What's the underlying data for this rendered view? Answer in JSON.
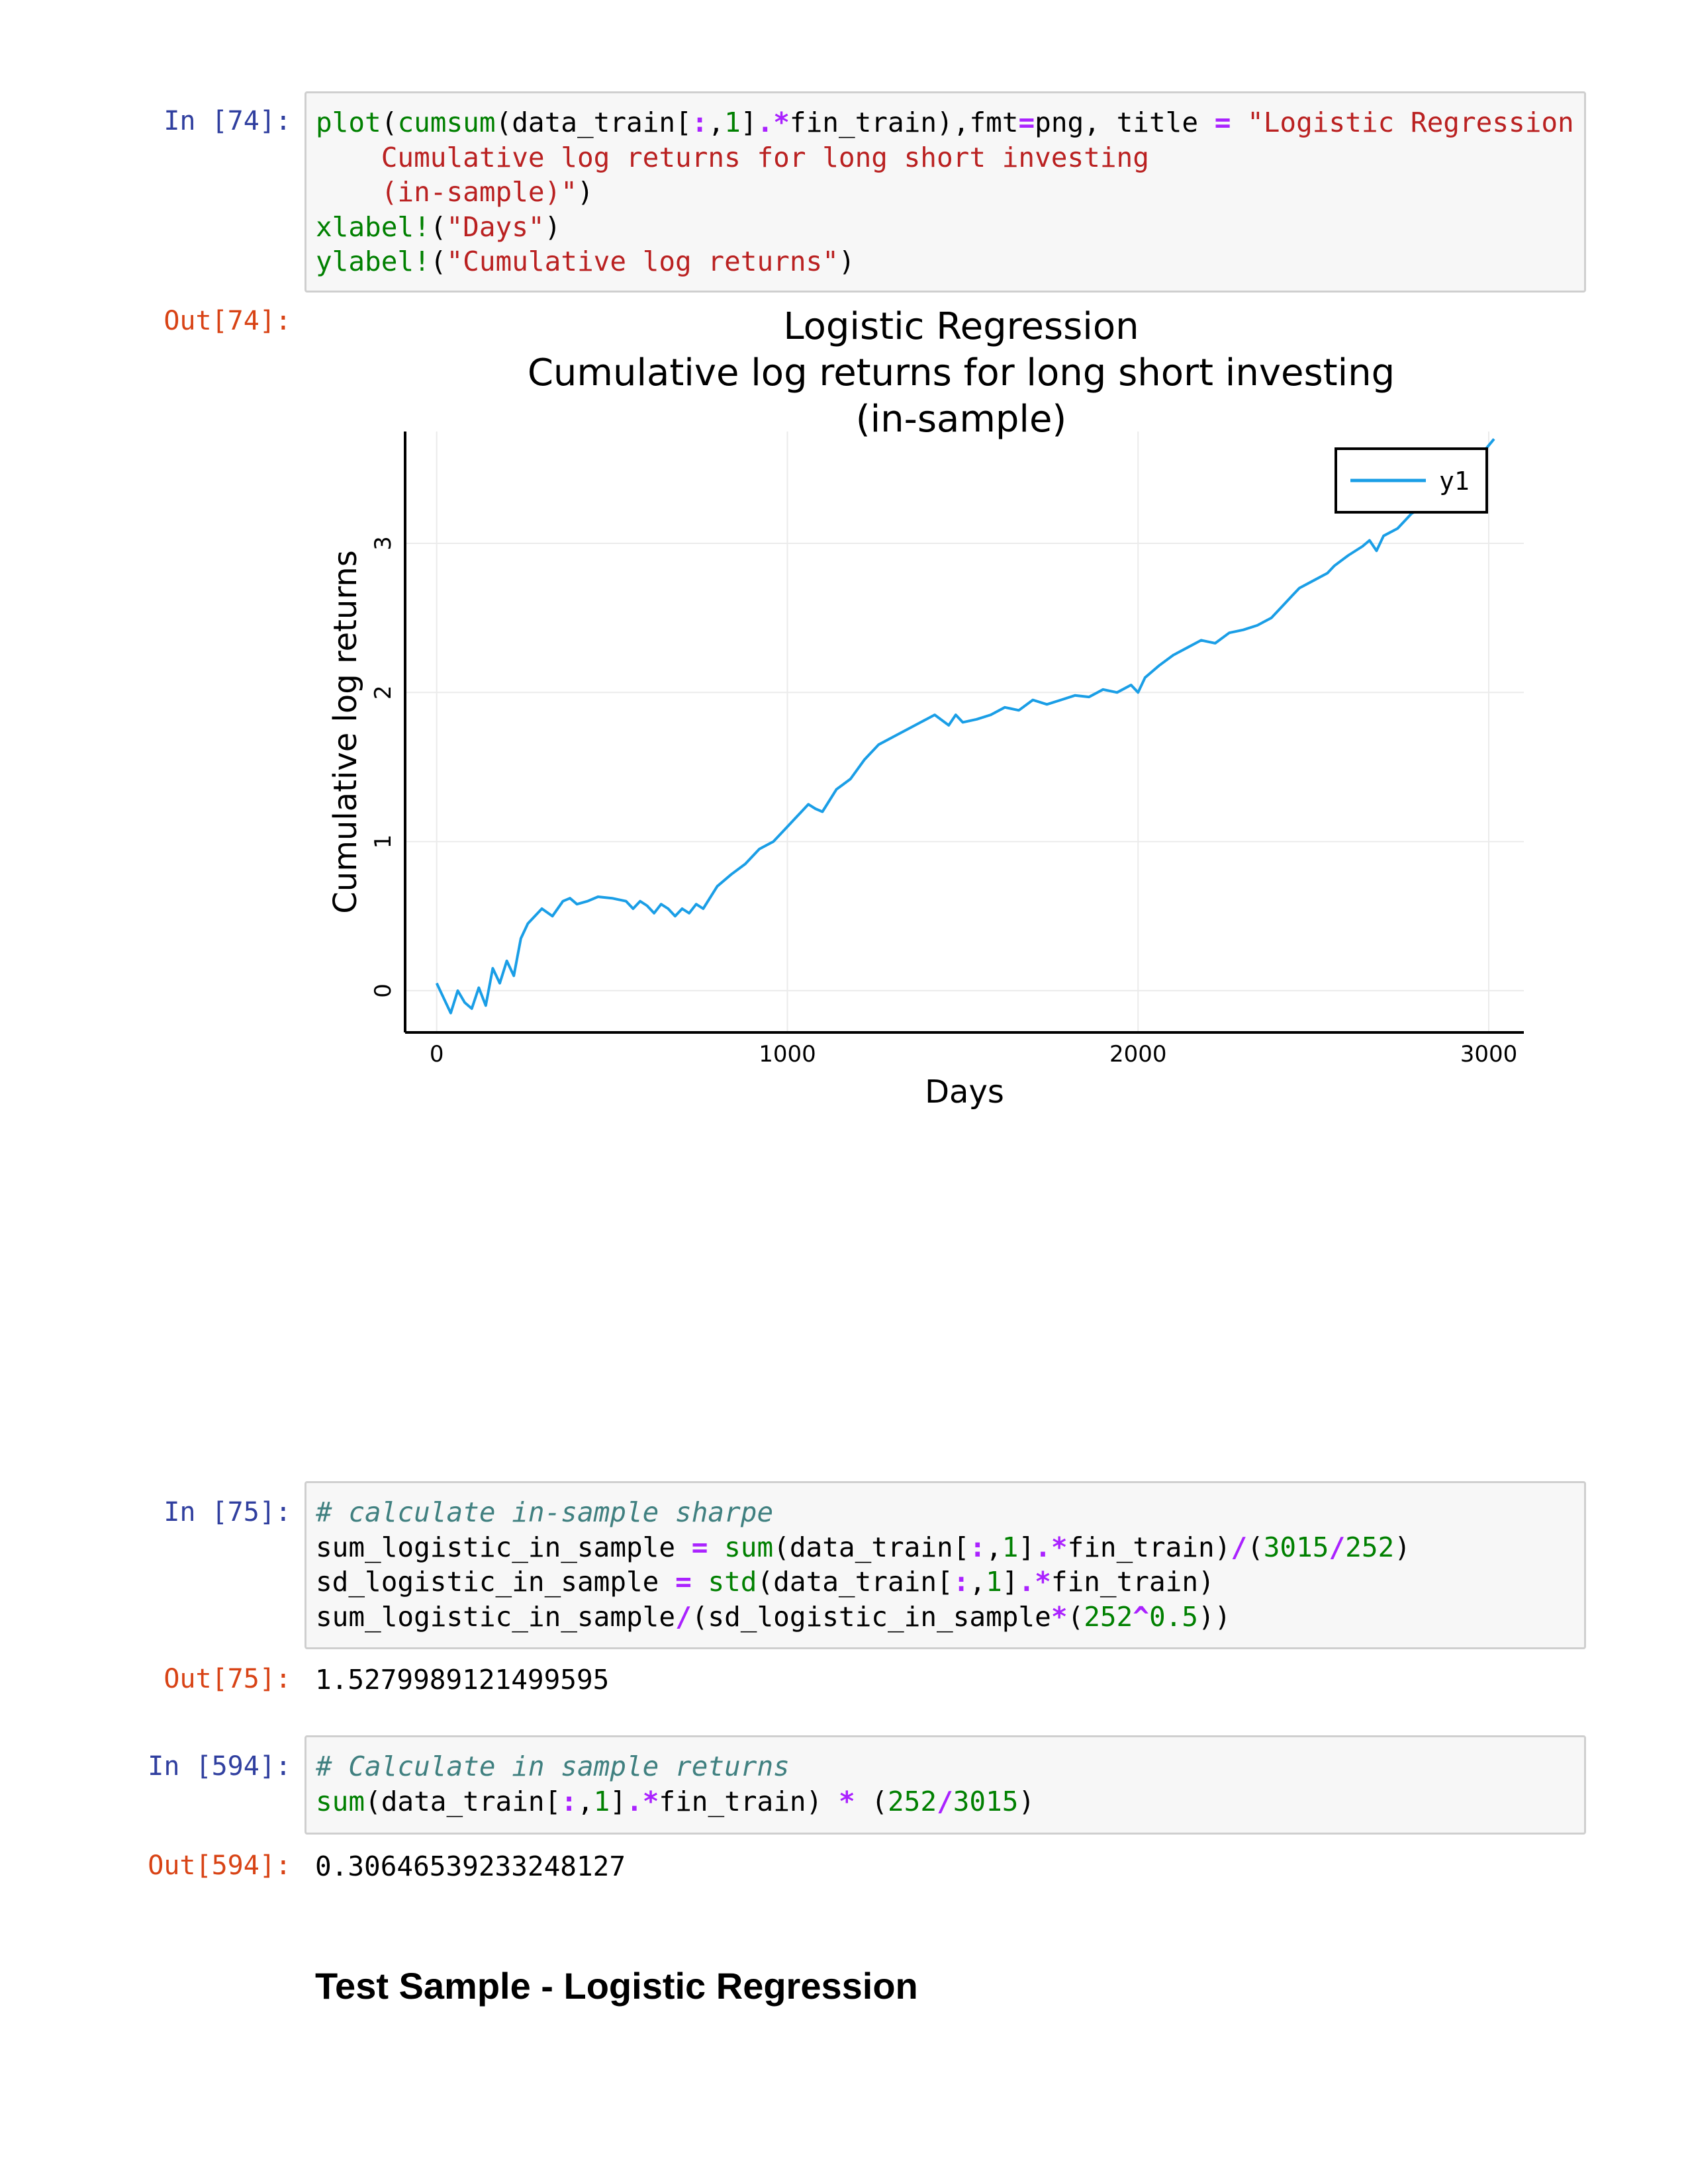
{
  "cells": {
    "c74": {
      "in_prompt": "In [74]:",
      "out_prompt": "Out[74]:"
    },
    "c75": {
      "in_prompt": "In [75]:",
      "out_prompt": "Out[75]:",
      "output": "1.5279989121499595"
    },
    "c594": {
      "in_prompt": "In [594]:",
      "out_prompt": "Out[594]:",
      "output": "0.30646539233248127"
    }
  },
  "code": {
    "c74": [
      [
        [
          "fn",
          "plot"
        ],
        [
          "t",
          "("
        ],
        [
          "fn",
          "cumsum"
        ],
        [
          "t",
          "(data_train["
        ],
        [
          "op",
          ":"
        ],
        [
          "t",
          ","
        ],
        [
          "num",
          "1"
        ],
        [
          "t",
          "]"
        ],
        [
          "op",
          ".*"
        ],
        [
          "t",
          "fin_train),fmt"
        ],
        [
          "op",
          "="
        ],
        [
          "t",
          "png, title "
        ],
        [
          "op",
          "="
        ],
        [
          "t",
          " "
        ],
        [
          "str",
          "\"Logistic Regression"
        ]
      ],
      [
        [
          "str",
          "    Cumulative log returns for long short investing"
        ]
      ],
      [
        [
          "str",
          "    (in-sample)\""
        ],
        [
          "t",
          ")"
        ]
      ],
      [
        [
          "fn",
          "xlabel!"
        ],
        [
          "t",
          "("
        ],
        [
          "str",
          "\"Days\""
        ],
        [
          "t",
          ")"
        ]
      ],
      [
        [
          "fn",
          "ylabel!"
        ],
        [
          "t",
          "("
        ],
        [
          "str",
          "\"Cumulative log returns\""
        ],
        [
          "t",
          ")"
        ]
      ]
    ],
    "c75": [
      [
        [
          "cm",
          "# calculate in-sample sharpe"
        ]
      ],
      [
        [
          "t",
          "sum_logistic_in_sample "
        ],
        [
          "op",
          "="
        ],
        [
          "t",
          " "
        ],
        [
          "fn",
          "sum"
        ],
        [
          "t",
          "(data_train["
        ],
        [
          "op",
          ":"
        ],
        [
          "t",
          ","
        ],
        [
          "num",
          "1"
        ],
        [
          "t",
          "]"
        ],
        [
          "op",
          ".*"
        ],
        [
          "t",
          "fin_train)"
        ],
        [
          "op",
          "/"
        ],
        [
          "t",
          "("
        ],
        [
          "num",
          "3015"
        ],
        [
          "op",
          "/"
        ],
        [
          "num",
          "252"
        ],
        [
          "t",
          ")"
        ]
      ],
      [
        [
          "t",
          "sd_logistic_in_sample "
        ],
        [
          "op",
          "="
        ],
        [
          "t",
          " "
        ],
        [
          "fn",
          "std"
        ],
        [
          "t",
          "(data_train["
        ],
        [
          "op",
          ":"
        ],
        [
          "t",
          ","
        ],
        [
          "num",
          "1"
        ],
        [
          "t",
          "]"
        ],
        [
          "op",
          ".*"
        ],
        [
          "t",
          "fin_train)"
        ]
      ],
      [
        [
          "t",
          "sum_logistic_in_sample"
        ],
        [
          "op",
          "/"
        ],
        [
          "t",
          "(sd_logistic_in_sample"
        ],
        [
          "op",
          "*"
        ],
        [
          "t",
          "("
        ],
        [
          "num",
          "252"
        ],
        [
          "op",
          "^"
        ],
        [
          "num",
          "0.5"
        ],
        [
          "t",
          "))"
        ]
      ]
    ],
    "c594": [
      [
        [
          "cm",
          "# Calculate in sample returns"
        ]
      ],
      [
        [
          "fn",
          "sum"
        ],
        [
          "t",
          "(data_train["
        ],
        [
          "op",
          ":"
        ],
        [
          "t",
          ","
        ],
        [
          "num",
          "1"
        ],
        [
          "t",
          "]"
        ],
        [
          "op",
          ".*"
        ],
        [
          "t",
          "fin_train) "
        ],
        [
          "op",
          "*"
        ],
        [
          "t",
          " ("
        ],
        [
          "num",
          "252"
        ],
        [
          "op",
          "/"
        ],
        [
          "num",
          "3015"
        ],
        [
          "t",
          ")"
        ]
      ]
    ]
  },
  "chart_data": {
    "type": "line",
    "title": [
      "Logistic Regression",
      "Cumulative log returns for long short investing",
      "(in-sample)"
    ],
    "xlabel": "Days",
    "ylabel": "Cumulative log returns",
    "xlim": [
      -90,
      3100
    ],
    "ylim": [
      -0.28,
      3.75
    ],
    "xticks": [
      0,
      1000,
      2000,
      3000
    ],
    "xtick_labels": [
      "0",
      "1000",
      "2000",
      "3000"
    ],
    "yticks": [
      0,
      1,
      2,
      3
    ],
    "ytick_labels": [
      "0",
      "1",
      "2",
      "3"
    ],
    "grid": true,
    "legend_position": "top-right",
    "color": "#1a9ee6",
    "series": [
      {
        "name": "y1",
        "x": [
          0,
          20,
          40,
          60,
          80,
          100,
          120,
          140,
          160,
          180,
          200,
          220,
          240,
          260,
          280,
          300,
          330,
          360,
          380,
          400,
          430,
          460,
          500,
          540,
          560,
          580,
          600,
          620,
          640,
          660,
          680,
          700,
          720,
          740,
          760,
          800,
          840,
          880,
          920,
          960,
          1000,
          1020,
          1040,
          1060,
          1080,
          1100,
          1140,
          1180,
          1220,
          1260,
          1300,
          1340,
          1380,
          1420,
          1460,
          1480,
          1500,
          1540,
          1580,
          1620,
          1660,
          1700,
          1740,
          1780,
          1820,
          1860,
          1900,
          1940,
          1980,
          2000,
          2020,
          2060,
          2100,
          2140,
          2180,
          2220,
          2260,
          2300,
          2340,
          2380,
          2420,
          2440,
          2460,
          2500,
          2540,
          2560,
          2600,
          2640,
          2660,
          2680,
          2700,
          2740,
          2780,
          2820,
          2860,
          2900,
          2940,
          2980,
          3015
        ],
        "y": [
          0.05,
          -0.05,
          -0.15,
          0.0,
          -0.08,
          -0.12,
          0.02,
          -0.1,
          0.15,
          0.05,
          0.2,
          0.1,
          0.35,
          0.45,
          0.5,
          0.55,
          0.5,
          0.6,
          0.62,
          0.58,
          0.6,
          0.63,
          0.62,
          0.6,
          0.55,
          0.6,
          0.57,
          0.52,
          0.58,
          0.55,
          0.5,
          0.55,
          0.52,
          0.58,
          0.55,
          0.7,
          0.78,
          0.85,
          0.95,
          1.0,
          1.1,
          1.15,
          1.2,
          1.25,
          1.22,
          1.2,
          1.35,
          1.42,
          1.55,
          1.65,
          1.7,
          1.75,
          1.8,
          1.85,
          1.78,
          1.85,
          1.8,
          1.82,
          1.85,
          1.9,
          1.88,
          1.95,
          1.92,
          1.95,
          1.98,
          1.97,
          2.02,
          2.0,
          2.05,
          2.0,
          2.1,
          2.18,
          2.25,
          2.3,
          2.35,
          2.33,
          2.4,
          2.42,
          2.45,
          2.5,
          2.6,
          2.65,
          2.7,
          2.75,
          2.8,
          2.85,
          2.92,
          2.98,
          3.02,
          2.95,
          3.05,
          3.1,
          3.2,
          3.25,
          3.32,
          3.38,
          3.45,
          3.6,
          3.7
        ]
      }
    ]
  }
}
